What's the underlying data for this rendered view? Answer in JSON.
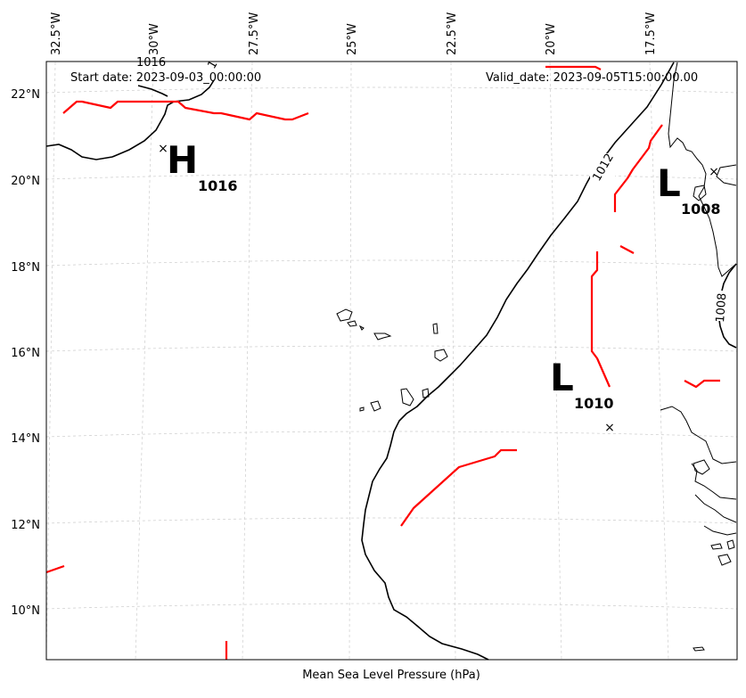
{
  "map": {
    "start_date": "Start date: 2023-09-03_00:00:00",
    "valid_date": "Valid_date: 2023-09-05T15:00:00.00",
    "xlabel": "Mean Sea Level Pressure (hPa)",
    "lon_labels": [
      "32.5°W",
      "30°W",
      "27.5°W",
      "25°W",
      "22.5°W",
      "20°W",
      "17.5°W"
    ],
    "lat_labels": [
      "22°N",
      "20°N",
      "18°N",
      "16°N",
      "14°N",
      "12°N",
      "10°N"
    ],
    "isobar_labels": [
      "1016",
      "1012",
      "1008"
    ],
    "pressure_systems": [
      {
        "type": "H",
        "value": "1016"
      },
      {
        "type": "L",
        "value": "1008"
      },
      {
        "type": "L",
        "value": "1010"
      }
    ],
    "colors": {
      "fronts": "#ff0000",
      "isobars": "#000000",
      "coastline": "#000000",
      "gridlines": "#cccccc"
    }
  }
}
